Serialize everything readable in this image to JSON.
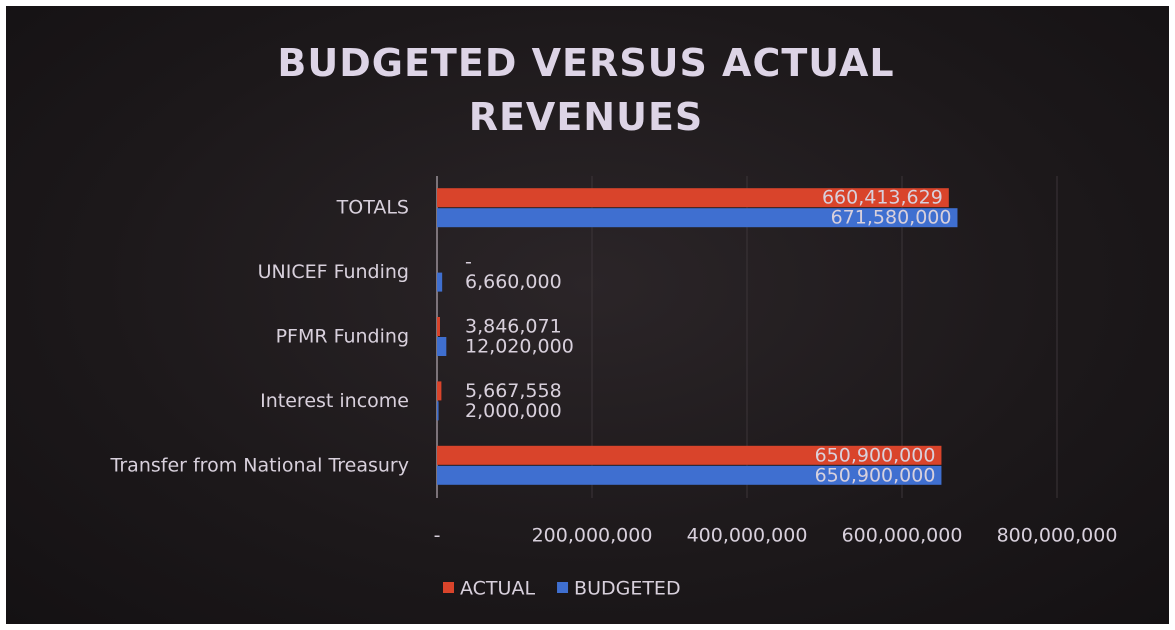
{
  "chart_data": {
    "type": "hbar",
    "title": "BUDGETED VERSUS ACTUAL REVENUES",
    "categories": [
      "Transfer from National Treasury",
      "Interest income",
      "PFMR Funding",
      "UNICEF Funding",
      "TOTALS"
    ],
    "series": [
      {
        "name": "ACTUAL",
        "color": "#d9442b",
        "values": [
          650900000,
          5667558,
          3846071,
          0,
          660413629
        ],
        "value_labels": [
          "650,900,000",
          "5,667,558",
          "3,846,071",
          "-",
          "660,413,629"
        ]
      },
      {
        "name": "BUDGETED",
        "color": "#3f6fd0",
        "values": [
          650900000,
          2000000,
          12020000,
          6660000,
          671580000
        ],
        "value_labels": [
          "650,900,000",
          "2,000,000",
          "12,020,000",
          "6,660,000",
          "671,580,000"
        ]
      }
    ],
    "xlim": [
      0,
      800000000
    ],
    "xticks": [
      {
        "value": 0,
        "label": "-"
      },
      {
        "value": 200000000,
        "label": "200,000,000"
      },
      {
        "value": 400000000,
        "label": "400,000,000"
      },
      {
        "value": 600000000,
        "label": "600,000,000"
      },
      {
        "value": 800000000,
        "label": "800,000,000"
      }
    ],
    "grid": true,
    "legend": "bottom"
  }
}
